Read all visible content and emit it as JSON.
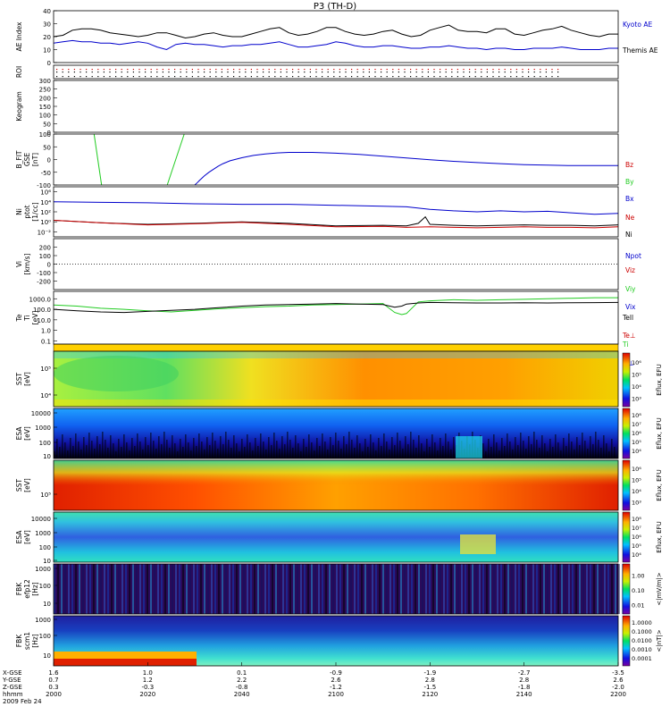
{
  "title": "P3 (TH-D)",
  "colors": {
    "kyoto": "#000000",
    "themis": "#0000cc",
    "bz": "#cc0000",
    "by": "#22cc22",
    "bx": "#0000cc",
    "ne": "#cc0000",
    "ni": "#0000cc",
    "npot": "#000000",
    "tell": "#000000",
    "tion": "#22cc22",
    "tperp": "#0000cc"
  },
  "chart_data": [
    {
      "type": "line",
      "panel": "ae",
      "ylabel": "AE Index",
      "ylim": [
        0,
        40
      ],
      "yticks": [
        "0",
        "10",
        "20",
        "30",
        "40"
      ],
      "series": [
        {
          "name": "Kyoto AE",
          "x": [
            0,
            2,
            4,
            6,
            8,
            10,
            12,
            14,
            16,
            18,
            20,
            22,
            24,
            26,
            28,
            30,
            32,
            34,
            36,
            38,
            40,
            42,
            44,
            46,
            48,
            50,
            52,
            54,
            56,
            58,
            60,
            62,
            64,
            66,
            68,
            70,
            72,
            74,
            76,
            78,
            80,
            82,
            84,
            86,
            88,
            90,
            92,
            94,
            96,
            98,
            100,
            102,
            104,
            106,
            108,
            110,
            112,
            114,
            116,
            118,
            120
          ],
          "y": [
            20,
            21,
            25,
            26,
            26,
            25,
            23,
            22,
            21,
            20,
            21,
            23,
            23,
            21,
            19,
            20,
            22,
            23,
            21,
            20,
            20,
            22,
            24,
            26,
            27,
            23,
            21,
            22,
            24,
            27,
            27,
            24,
            22,
            21,
            22,
            24,
            25,
            22,
            20,
            21,
            25,
            27,
            29,
            25,
            24,
            24,
            23,
            26,
            26,
            22,
            21,
            23,
            25,
            26,
            28,
            25,
            23,
            21,
            20,
            22,
            22
          ]
        },
        {
          "name": "Themis AE",
          "x": [
            0,
            2,
            4,
            6,
            8,
            10,
            12,
            14,
            16,
            18,
            20,
            22,
            24,
            26,
            28,
            30,
            32,
            34,
            36,
            38,
            40,
            42,
            44,
            46,
            48,
            50,
            52,
            54,
            56,
            58,
            60,
            62,
            64,
            66,
            68,
            70,
            72,
            74,
            76,
            78,
            80,
            82,
            84,
            86,
            88,
            90,
            92,
            94,
            96,
            98,
            100,
            102,
            104,
            106,
            108,
            110,
            112,
            114,
            116,
            118,
            120
          ],
          "y": [
            15,
            16,
            17,
            16,
            16,
            15,
            15,
            14,
            15,
            16,
            15,
            12,
            10,
            14,
            15,
            14,
            14,
            13,
            12,
            13,
            13,
            14,
            14,
            15,
            16,
            14,
            12,
            12,
            13,
            14,
            16,
            15,
            13,
            12,
            12,
            13,
            13,
            12,
            11,
            11,
            12,
            12,
            13,
            12,
            11,
            11,
            10,
            11,
            11,
            10,
            10,
            11,
            11,
            11,
            12,
            11,
            10,
            10,
            10,
            11,
            11
          ]
        }
      ]
    },
    {
      "type": "scatter",
      "panel": "roi",
      "ylabel": "ROI",
      "rows": 3
    },
    {
      "type": "line",
      "panel": "keogram",
      "ylabel": "Keogram",
      "ylim": [
        0,
        300
      ],
      "yticks": [
        "0",
        "50",
        "100",
        "150",
        "200",
        "250",
        "300"
      ]
    },
    {
      "type": "line",
      "panel": "bfit",
      "ylabel": "B_FIT",
      "ylabel2": "GSE",
      "ylabel3": "[nT]",
      "ylim": [
        -100,
        100
      ],
      "yticks": [
        "-100",
        "-50",
        "0",
        "50",
        "100"
      ],
      "series": [
        {
          "name": "Bz",
          "x": [],
          "y": []
        },
        {
          "name": "By",
          "x": [
            17.2,
            20.4,
            48.3,
            55.5
          ],
          "y": [
            100,
            -100,
            -100,
            100
          ],
          "segments": [
            [
              0,
              1
            ],
            [
              2,
              3
            ]
          ]
        },
        {
          "name": "Bx",
          "x": [
            60,
            61,
            62,
            64,
            66,
            68,
            70,
            72,
            75,
            80,
            85,
            90,
            95,
            100,
            110,
            120,
            130,
            140,
            150,
            160,
            170,
            180,
            190,
            200,
            210,
            220,
            230,
            240
          ],
          "y": [
            -100,
            -92,
            -82,
            -65,
            -50,
            -38,
            -26,
            -16,
            -5,
            7,
            16,
            22,
            26,
            28,
            28,
            25,
            20,
            13,
            6,
            -1,
            -7,
            -12,
            -16,
            -20,
            -22,
            -24,
            -24,
            -24
          ]
        }
      ]
    },
    {
      "type": "line",
      "panel": "ni",
      "ylabel": "Ni",
      "ylabel2": "ptot",
      "ylabel3": "[1/cc]",
      "ylim_log": [
        -3,
        7
      ],
      "yticks": [
        "10⁻²",
        "10⁰",
        "10²",
        "10⁴",
        "10⁶"
      ],
      "series": [
        {
          "name": "Ne",
          "x": [
            0,
            20,
            40,
            60,
            80,
            100,
            120,
            140,
            150,
            160,
            170,
            180,
            190,
            200,
            210,
            220,
            230,
            240
          ],
          "y": [
            0.3,
            -0.2,
            -0.6,
            -0.4,
            -0.1,
            -0.5,
            -1.0,
            -0.9,
            -1.1,
            -1.0,
            -1.1,
            -1.2,
            -1.1,
            -1.0,
            -1.1,
            -1.1,
            -1.2,
            -1.0
          ]
        },
        {
          "name": "Ni",
          "x": [
            0,
            20,
            40,
            60,
            80,
            100,
            120,
            140,
            150,
            160,
            170,
            180,
            190,
            200,
            210,
            220,
            230,
            240
          ],
          "y": [
            4.0,
            3.9,
            3.8,
            3.6,
            3.5,
            3.5,
            3.3,
            3.1,
            3.0,
            2.5,
            2.2,
            2.0,
            2.2,
            2.0,
            2.1,
            1.8,
            1.5,
            1.7
          ]
        },
        {
          "name": "Npot",
          "x": [
            0,
            20,
            40,
            60,
            80,
            100,
            120,
            140,
            150,
            155,
            158,
            160,
            170,
            180,
            190,
            200,
            210,
            220,
            230,
            240
          ],
          "y": [
            0.3,
            -0.2,
            -0.5,
            -0.3,
            0.0,
            -0.3,
            -0.8,
            -0.7,
            -0.8,
            -0.3,
            1.0,
            -0.5,
            -0.7,
            -0.8,
            -0.7,
            -0.6,
            -0.7,
            -0.7,
            -0.8,
            -0.6
          ]
        }
      ]
    },
    {
      "type": "line",
      "panel": "vi",
      "ylabel": "Vi",
      "ylabel3": "[km/s]",
      "ylim": [
        -300,
        300
      ],
      "yticks": [
        "-200",
        "-100",
        "0",
        "100",
        "200"
      ],
      "series": [
        {
          "name": "Vix",
          "x": [],
          "y": []
        },
        {
          "name": "Viy",
          "x": [],
          "y": []
        },
        {
          "name": "Viz",
          "x": [],
          "y": []
        }
      ]
    },
    {
      "type": "line",
      "panel": "te",
      "ylabel": "Te",
      "ylabel2": "Ti",
      "ylabel3": "[eV]",
      "ylim_log": [
        -1.3,
        3.7
      ],
      "yticks": [
        "0.1",
        "1.0",
        "10.0",
        "100.0",
        "1000.0"
      ],
      "series": [
        {
          "name": "Tell",
          "x": [
            0,
            10,
            20,
            30,
            40,
            50,
            60,
            70,
            80,
            90,
            100,
            110,
            120,
            130,
            140,
            145,
            148,
            150,
            155,
            160,
            170,
            180,
            190,
            200,
            210,
            220,
            230,
            240
          ],
          "y": [
            2.0,
            1.85,
            1.75,
            1.7,
            1.8,
            1.9,
            2.0,
            2.15,
            2.3,
            2.4,
            2.45,
            2.5,
            2.55,
            2.5,
            2.45,
            2.2,
            2.3,
            2.5,
            2.6,
            2.65,
            2.62,
            2.6,
            2.6,
            2.62,
            2.6,
            2.62,
            2.63,
            2.65
          ]
        },
        {
          "name": "Ti",
          "x": [
            0,
            10,
            20,
            30,
            40,
            50,
            60,
            70,
            80,
            90,
            100,
            110,
            120,
            130,
            140,
            145,
            148,
            150,
            155,
            160,
            170,
            180,
            190,
            200,
            210,
            220,
            230,
            240
          ],
          "y": [
            2.4,
            2.3,
            2.1,
            2.0,
            1.85,
            1.75,
            1.9,
            2.05,
            2.15,
            2.25,
            2.3,
            2.4,
            2.45,
            2.5,
            2.55,
            1.7,
            1.5,
            1.6,
            2.7,
            2.8,
            2.9,
            2.85,
            2.9,
            2.95,
            3.0,
            3.05,
            3.1,
            3.1
          ]
        },
        {
          "name": "Te⊥",
          "x": [],
          "y": []
        },
        {
          "name": "Ti⊥",
          "x": [],
          "y": []
        }
      ]
    },
    {
      "type": "heatmap",
      "panel": "sst_i",
      "ylabel": "SST",
      "ylabel3": "[eV]",
      "yticks": [
        "10⁴",
        "10⁵"
      ],
      "colorbar": {
        "label": "Eflux, EFU",
        "ticks": [
          "10³",
          "10⁴",
          "10⁵",
          "10⁶"
        ]
      }
    },
    {
      "type": "heatmap",
      "panel": "esa_i",
      "ylabel": "ESA",
      "ylabel3": "[eV]",
      "yticks": [
        "10",
        "100",
        "1000",
        "10000"
      ],
      "colorbar": {
        "label": "Eflux, EFU",
        "ticks": [
          "10⁴",
          "10⁵",
          "10⁶",
          "10⁷",
          "10⁸"
        ]
      }
    },
    {
      "type": "heatmap",
      "panel": "sst_e",
      "ylabel": "SST",
      "ylabel3": "[eV]",
      "yticks": [
        "10⁵"
      ],
      "colorbar": {
        "label": "Eflux, EFU",
        "ticks": [
          "10³",
          "10⁴",
          "10⁵",
          "10⁶"
        ]
      }
    },
    {
      "type": "heatmap",
      "panel": "esa_e",
      "ylabel": "ESA",
      "ylabel3": "[eV]",
      "yticks": [
        "10",
        "100",
        "1000",
        "10000"
      ],
      "colorbar": {
        "label": "Eflux, EFU",
        "ticks": [
          "10⁴",
          "10⁵",
          "10⁶",
          "10⁷",
          "10⁸"
        ]
      }
    },
    {
      "type": "heatmap",
      "panel": "fbk_e",
      "ylabel": "FBK",
      "ylabel2": "efp12",
      "ylabel3": "[Hz]",
      "yticks": [
        "10",
        "100",
        "1000"
      ],
      "colorbar": {
        "label": "<|mV/m|>",
        "ticks": [
          "0.01",
          "0.10",
          "1.00"
        ]
      }
    },
    {
      "type": "heatmap",
      "panel": "fbk_b",
      "ylabel": "FBK",
      "ylabel2": "scm1",
      "ylabel3": "[Hz]",
      "yticks": [
        "10",
        "100",
        "1000"
      ],
      "colorbar": {
        "label": "<|nT|>",
        "ticks": [
          "0.0001",
          "0.0010",
          "0.0100",
          "0.1000",
          "1.0000"
        ]
      }
    }
  ],
  "xaxis": {
    "row_labels": [
      "X-GSE",
      "Y-GSE",
      "Z-GSE",
      "hhmm",
      "2009 Feb 24"
    ],
    "columns": [
      {
        "vals": [
          "1.6",
          "0.7",
          "0.3",
          "2000"
        ]
      },
      {
        "vals": [
          "1.0",
          "1.2",
          "-0.3",
          "2020"
        ]
      },
      {
        "vals": [
          "0.1",
          "2.2",
          "-0.8",
          "2040"
        ]
      },
      {
        "vals": [
          "-0.9",
          "2.6",
          "-1.2",
          "2100"
        ]
      },
      {
        "vals": [
          "-1.9",
          "2.8",
          "-1.5",
          "2120"
        ]
      },
      {
        "vals": [
          "-2.7",
          "2.8",
          "-1.8",
          "2140"
        ]
      },
      {
        "vals": [
          "-3.5",
          "2.6",
          "-2.0",
          "2200"
        ]
      }
    ]
  },
  "legends": {
    "ae": [
      "Kyoto AE",
      "Themis AE"
    ],
    "bfit": [
      "Bz",
      "By",
      "Bx"
    ],
    "ni": [
      "Ne",
      "Ni",
      "Npot"
    ],
    "vi": [
      "Viz",
      "Viy",
      "Vix"
    ],
    "te": [
      "Tell",
      "Te⊥",
      "Ti",
      "Ti⊥"
    ]
  }
}
